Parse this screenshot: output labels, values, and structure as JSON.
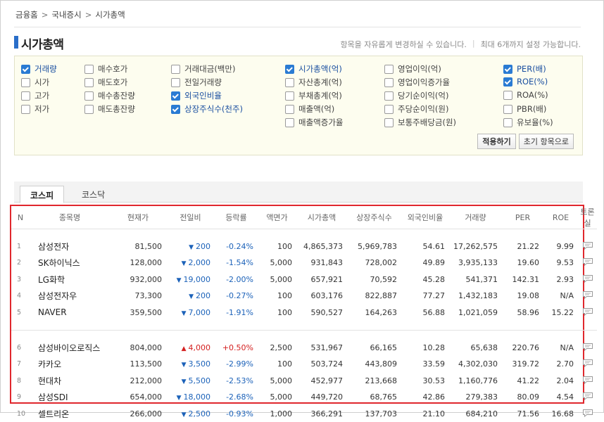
{
  "breadcrumb": [
    "금융홈",
    "국내증시",
    "시가총액"
  ],
  "breadcrumb_sep": ">",
  "title": "시가총액",
  "hint": [
    "항목을 자유롭게 변경하실 수 있습니다.",
    "|",
    "최대 6개까지 설정 가능합니다."
  ],
  "options": [
    {
      "label": "거래량",
      "checked": true
    },
    {
      "label": "시가",
      "checked": false
    },
    {
      "label": "고가",
      "checked": false
    },
    {
      "label": "저가",
      "checked": false
    },
    {
      "label": "매수호가",
      "checked": false
    },
    {
      "label": "매도호가",
      "checked": false
    },
    {
      "label": "매수총잔량",
      "checked": false
    },
    {
      "label": "매도총잔량",
      "checked": false
    },
    {
      "label": "거래대금(백만)",
      "checked": false
    },
    {
      "label": "전일거래량",
      "checked": false
    },
    {
      "label": "외국인비율",
      "checked": true
    },
    {
      "label": "상장주식수(천주)",
      "checked": true
    },
    {
      "label": "시가총액(억)",
      "checked": true
    },
    {
      "label": "자산총계(억)",
      "checked": false
    },
    {
      "label": "부채총계(억)",
      "checked": false
    },
    {
      "label": "매출액(억)",
      "checked": false
    },
    {
      "label": "매출액증가율",
      "checked": false
    },
    {
      "label": "영업이익(억)",
      "checked": false
    },
    {
      "label": "영업이익증가율",
      "checked": false
    },
    {
      "label": "당기순이익(억)",
      "checked": false
    },
    {
      "label": "주당순이익(원)",
      "checked": false
    },
    {
      "label": "보통주배당금(원)",
      "checked": false
    },
    {
      "label": "PER(배)",
      "checked": true
    },
    {
      "label": "ROE(%)",
      "checked": true
    },
    {
      "label": "ROA(%)",
      "checked": false
    },
    {
      "label": "PBR(배)",
      "checked": false
    },
    {
      "label": "유보율(%)",
      "checked": false
    }
  ],
  "buttons": {
    "apply": "적용하기",
    "reset": "초기 항목으로"
  },
  "tabs": {
    "active": "코스피",
    "other": "코스닥"
  },
  "columns": [
    "N",
    "종목명",
    "현재가",
    "전일비",
    "등락률",
    "액면가",
    "시가총액",
    "상장주식수",
    "외국인비율",
    "거래량",
    "PER",
    "ROE",
    "토론실"
  ],
  "rows": [
    {
      "n": "1",
      "name": "삼성전자",
      "price": "81,500",
      "dir": "down",
      "change": "200",
      "rate": "-0.24%",
      "face": "100",
      "cap": "4,865,373",
      "shares": "5,969,783",
      "foreign": "54.61",
      "volume": "17,262,575",
      "per": "21.22",
      "roe": "9.99"
    },
    {
      "n": "2",
      "name": "SK하이닉스",
      "price": "128,000",
      "dir": "down",
      "change": "2,000",
      "rate": "-1.54%",
      "face": "5,000",
      "cap": "931,843",
      "shares": "728,002",
      "foreign": "49.89",
      "volume": "3,935,133",
      "per": "19.60",
      "roe": "9.53"
    },
    {
      "n": "3",
      "name": "LG화학",
      "price": "932,000",
      "dir": "down",
      "change": "19,000",
      "rate": "-2.00%",
      "face": "5,000",
      "cap": "657,921",
      "shares": "70,592",
      "foreign": "45.28",
      "volume": "541,371",
      "per": "142.31",
      "roe": "2.93"
    },
    {
      "n": "4",
      "name": "삼성전자우",
      "price": "73,300",
      "dir": "down",
      "change": "200",
      "rate": "-0.27%",
      "face": "100",
      "cap": "603,176",
      "shares": "822,887",
      "foreign": "77.27",
      "volume": "1,432,183",
      "per": "19.08",
      "roe": "N/A"
    },
    {
      "n": "5",
      "name": "NAVER",
      "price": "359,500",
      "dir": "down",
      "change": "7,000",
      "rate": "-1.91%",
      "face": "100",
      "cap": "590,527",
      "shares": "164,263",
      "foreign": "56.88",
      "volume": "1,021,059",
      "per": "58.96",
      "roe": "15.22"
    },
    {
      "n": "6",
      "name": "삼성바이오로직스",
      "price": "804,000",
      "dir": "up",
      "change": "4,000",
      "rate": "+0.50%",
      "face": "2,500",
      "cap": "531,967",
      "shares": "66,165",
      "foreign": "10.28",
      "volume": "65,638",
      "per": "220.76",
      "roe": "N/A"
    },
    {
      "n": "7",
      "name": "카카오",
      "price": "113,500",
      "dir": "down",
      "change": "3,500",
      "rate": "-2.99%",
      "face": "100",
      "cap": "503,724",
      "shares": "443,809",
      "foreign": "33.59",
      "volume": "4,302,030",
      "per": "319.72",
      "roe": "2.70"
    },
    {
      "n": "8",
      "name": "현대차",
      "price": "212,000",
      "dir": "down",
      "change": "5,500",
      "rate": "-2.53%",
      "face": "5,000",
      "cap": "452,977",
      "shares": "213,668",
      "foreign": "30.53",
      "volume": "1,160,776",
      "per": "41.22",
      "roe": "2.04"
    },
    {
      "n": "9",
      "name": "삼성SDI",
      "price": "654,000",
      "dir": "down",
      "change": "18,000",
      "rate": "-2.68%",
      "face": "5,000",
      "cap": "449,720",
      "shares": "68,765",
      "foreign": "42.86",
      "volume": "279,383",
      "per": "80.09",
      "roe": "4.54"
    },
    {
      "n": "10",
      "name": "셀트리온",
      "price": "266,000",
      "dir": "down",
      "change": "2,500",
      "rate": "-0.93%",
      "face": "1,000",
      "cap": "366,291",
      "shares": "137,703",
      "foreign": "21.10",
      "volume": "684,210",
      "per": "71.56",
      "roe": "16.68"
    }
  ],
  "colors": {
    "accent": "#2a6ec9",
    "down": "#1c62b9",
    "up": "#d42020",
    "highlight_border": "#e0272d",
    "options_bg": "#fdfdef"
  },
  "icons": {
    "comment": "speech-bubble-icon",
    "down": "triangle-down",
    "up": "triangle-up"
  }
}
